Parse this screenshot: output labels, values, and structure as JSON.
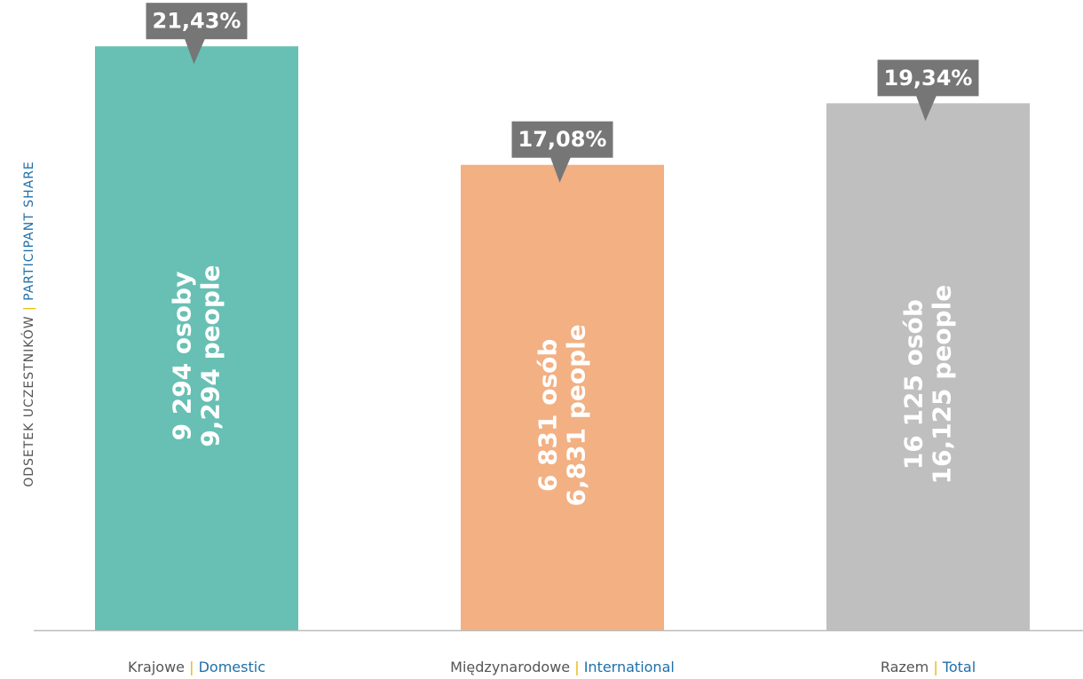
{
  "chart_data": {
    "type": "bar",
    "y_label": "ODSETEK UCZESTNIKÓW",
    "y_label_en": "PARTICIPANT SHARE",
    "separator": "|",
    "categories": [
      "Krajowe",
      "Międzynarodowe",
      "Razem"
    ],
    "categories_en": [
      "Domestic",
      "International",
      "Total"
    ],
    "values": [
      21.43,
      17.08,
      19.34
    ],
    "value_labels": [
      "21,43%",
      "17,08%",
      "19,34%"
    ],
    "counts": [
      9294,
      6831,
      16125
    ],
    "count_labels": [
      "9 294 osoby",
      "6 831 osób",
      "16 125 osób"
    ],
    "count_labels_en": [
      "9,294 people",
      "6,831 people",
      "16,125 people"
    ],
    "colors": [
      "#67c0b3",
      "#f2b083",
      "#bfbfbf"
    ],
    "ylim": [
      0,
      23
    ]
  }
}
